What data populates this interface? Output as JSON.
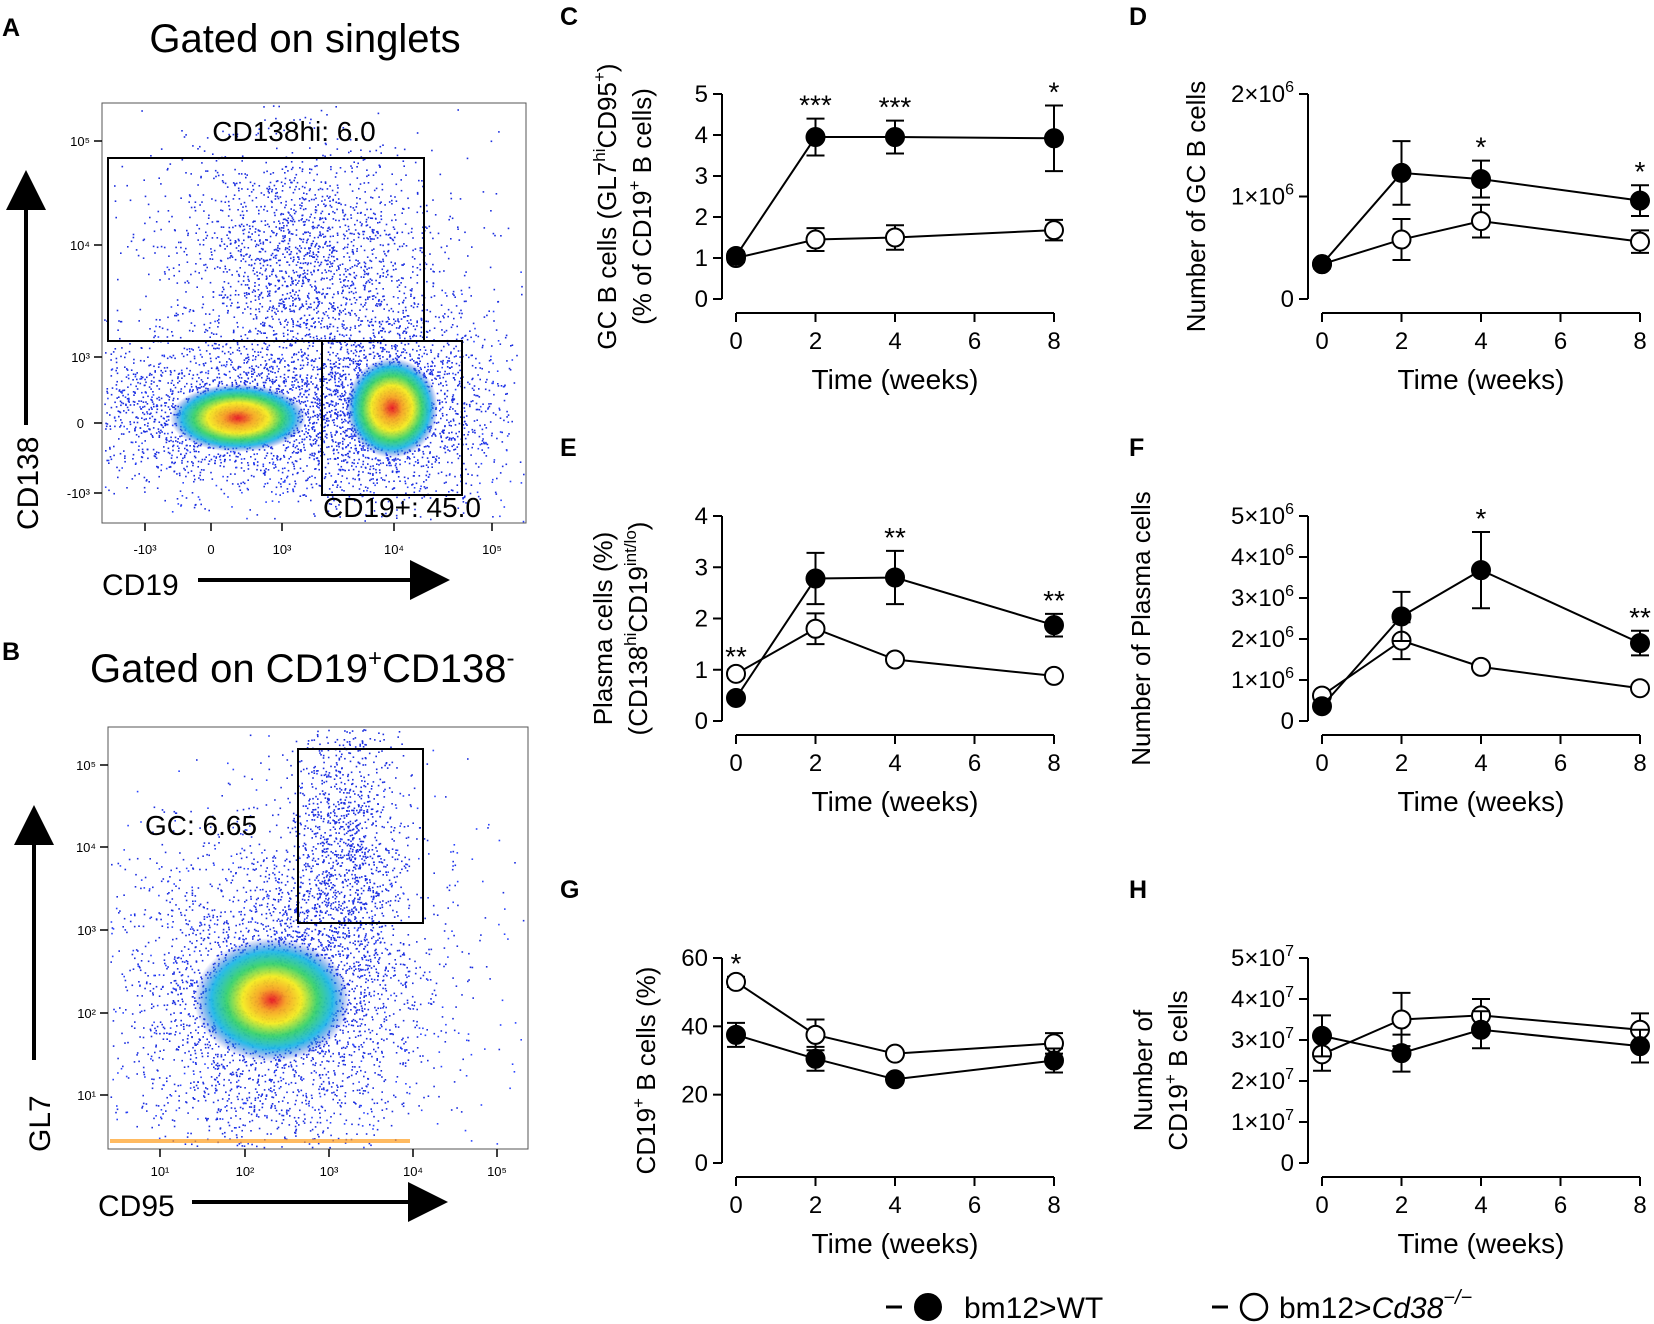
{
  "panels": {
    "A": {
      "letter": "A",
      "title": "Gated on singlets",
      "xaxis": "CD19",
      "yaxis": "CD138",
      "gates": {
        "cd138hi": "CD138hi: 6.0",
        "cd19pos": "CD19+: 45.0"
      },
      "xticks": [
        "-10³",
        "0",
        "10³",
        "10⁴",
        "10⁵"
      ],
      "yticks": [
        "10⁵",
        "10⁴",
        "10³",
        "0",
        "-10³"
      ]
    },
    "B": {
      "letter": "B",
      "title_main": "Gated on CD19",
      "title_sup1": "+",
      "title_mid": "CD138",
      "title_sup2": "-",
      "xaxis": "CD95",
      "yaxis": "GL7",
      "gates": {
        "gc": "GC: 6.65"
      },
      "xticks": [
        "10¹",
        "10²",
        "10³",
        "10⁴",
        "10⁵"
      ],
      "yticks": [
        "10⁵",
        "10⁴",
        "10³",
        "10²",
        "10¹"
      ]
    }
  },
  "chart_data": [
    {
      "id": "C",
      "type": "line",
      "letter": "C",
      "ylabel_line1": "GC B cells (GL7hiCD95+)",
      "ylabel_line2": "(% of CD19+ B cells)",
      "xlabel": "Time (weeks)",
      "x": [
        0,
        2,
        4,
        8
      ],
      "ylim": [
        0,
        5
      ],
      "yticks": [
        "0",
        "1",
        "2",
        "3",
        "4",
        "5"
      ],
      "series": [
        {
          "name": "bm12>WT",
          "values": [
            1.05,
            3.95,
            3.95,
            3.92
          ],
          "err": [
            0.1,
            0.45,
            0.4,
            0.8
          ]
        },
        {
          "name": "bm12>Cd38-/-",
          "values": [
            1.0,
            1.45,
            1.5,
            1.68
          ],
          "err": [
            0.1,
            0.28,
            0.3,
            0.25
          ]
        }
      ],
      "significance": [
        {
          "x": 2,
          "text": "***"
        },
        {
          "x": 4,
          "text": "***"
        },
        {
          "x": 8,
          "text": "*"
        }
      ]
    },
    {
      "id": "D",
      "type": "line",
      "letter": "D",
      "ylabel": "Number of GC B cells",
      "xlabel": "Time (weeks)",
      "x": [
        0,
        2,
        4,
        8
      ],
      "ylim": [
        0,
        2000000
      ],
      "yticks": [
        "0",
        "1×10⁶",
        "2×10⁶"
      ],
      "series": [
        {
          "name": "bm12>WT",
          "values": [
            340000,
            1230000,
            1170000,
            960000
          ],
          "err": [
            40000,
            310000,
            180000,
            150000
          ]
        },
        {
          "name": "bm12>Cd38-/-",
          "values": [
            340000,
            580000,
            760000,
            560000
          ],
          "err": [
            40000,
            200000,
            160000,
            110000
          ]
        }
      ],
      "significance": [
        {
          "x": 4,
          "text": "*"
        },
        {
          "x": 8,
          "text": "*"
        }
      ]
    },
    {
      "id": "E",
      "type": "line",
      "letter": "E",
      "ylabel_line1": "Plasma cells (%)",
      "ylabel_line2": "(CD138hiCD19int/lo)",
      "xlabel": "Time (weeks)",
      "x": [
        0,
        2,
        4,
        8
      ],
      "ylim": [
        0,
        4
      ],
      "yticks": [
        "0",
        "1",
        "2",
        "3",
        "4"
      ],
      "series": [
        {
          "name": "bm12>WT",
          "values": [
            0.45,
            2.78,
            2.8,
            1.87
          ],
          "err": [
            0.06,
            0.5,
            0.52,
            0.22
          ]
        },
        {
          "name": "bm12>Cd38-/-",
          "values": [
            0.92,
            1.8,
            1.2,
            0.88
          ],
          "err": [
            0.08,
            0.3,
            0.06,
            0.06
          ]
        }
      ],
      "significance": [
        {
          "x": 0,
          "text": "**"
        },
        {
          "x": 4,
          "text": "**"
        },
        {
          "x": 8,
          "text": "**"
        }
      ]
    },
    {
      "id": "F",
      "type": "line",
      "letter": "F",
      "ylabel": "Number of Plasma cells",
      "xlabel": "Time (weeks)",
      "x": [
        0,
        2,
        4,
        8
      ],
      "ylim": [
        0,
        5000000
      ],
      "yticks": [
        "0",
        "1×10⁶",
        "2×10⁶",
        "3×10⁶",
        "4×10⁶",
        "5×10⁶"
      ],
      "series": [
        {
          "name": "bm12>WT",
          "values": [
            360000,
            2550000,
            3680000,
            1900000
          ],
          "err": [
            40000,
            600000,
            930000,
            300000
          ]
        },
        {
          "name": "bm12>Cd38-/-",
          "values": [
            620000,
            1960000,
            1320000,
            800000
          ],
          "err": [
            50000,
            450000,
            80000,
            60000
          ]
        }
      ],
      "significance": [
        {
          "x": 4,
          "text": "*"
        },
        {
          "x": 8,
          "text": "**"
        }
      ]
    },
    {
      "id": "G",
      "type": "line",
      "letter": "G",
      "ylabel": "CD19+ B cells (%)",
      "xlabel": "Time (weeks)",
      "x": [
        0,
        2,
        4,
        8
      ],
      "ylim": [
        0,
        60
      ],
      "yticks": [
        "0",
        "20",
        "40",
        "60"
      ],
      "series": [
        {
          "name": "bm12>WT",
          "values": [
            37.5,
            30.5,
            24.5,
            30.0
          ],
          "err": [
            3.5,
            3.5,
            1.0,
            3.5
          ]
        },
        {
          "name": "bm12>Cd38-/-",
          "values": [
            53.0,
            37.5,
            32.0,
            35.0
          ],
          "err": [
            1.5,
            4.5,
            1.0,
            3.0
          ]
        }
      ],
      "significance": [
        {
          "x": 0,
          "text": "*"
        }
      ]
    },
    {
      "id": "H",
      "type": "line",
      "letter": "H",
      "ylabel_line1": "Number of",
      "ylabel_line2": "CD19+ B cells",
      "xlabel": "Time (weeks)",
      "x": [
        0,
        2,
        4,
        8
      ],
      "ylim": [
        0,
        50000000
      ],
      "yticks": [
        "0",
        "1×10⁷",
        "2×10⁷",
        "3×10⁷",
        "4×10⁷",
        "5×10⁷"
      ],
      "series": [
        {
          "name": "bm12>WT",
          "values": [
            31000000,
            26800000,
            32500000,
            28500000
          ],
          "err": [
            5000000,
            4500000,
            4500000,
            4000000
          ]
        },
        {
          "name": "bm12>Cd38-/-",
          "values": [
            26500000,
            35000000,
            36000000,
            32500000
          ],
          "err": [
            4000000,
            6500000,
            4000000,
            4000000
          ]
        }
      ],
      "significance": []
    }
  ],
  "legend": {
    "wt": "bm12>WT",
    "ko_prefix": "bm12>",
    "ko_gene": "Cd38",
    "ko_sup": "−/−"
  }
}
